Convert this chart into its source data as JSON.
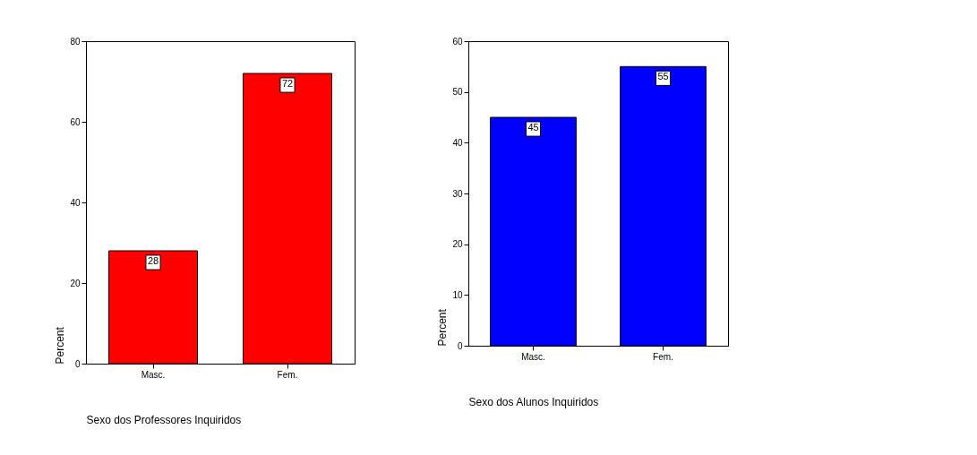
{
  "chart_data": [
    {
      "type": "bar",
      "categories": [
        "Masc.",
        "Fem."
      ],
      "values": [
        28,
        72
      ],
      "color": "#ff0000",
      "xlabel": "Sexo dos Professores Inquiridos",
      "ylabel": "Percent",
      "ylim": [
        0,
        80
      ],
      "yticks": [
        0,
        20,
        40,
        60,
        80
      ],
      "data_labels": true,
      "grid": false
    },
    {
      "type": "bar",
      "categories": [
        "Masc.",
        "Fem."
      ],
      "values": [
        45,
        55
      ],
      "color": "#0000ff",
      "xlabel": "Sexo dos Alunos Inquiridos",
      "ylabel": "Percent",
      "ylim": [
        0,
        60
      ],
      "yticks": [
        0,
        10,
        20,
        30,
        40,
        50,
        60
      ],
      "data_labels": true,
      "grid": false
    }
  ]
}
